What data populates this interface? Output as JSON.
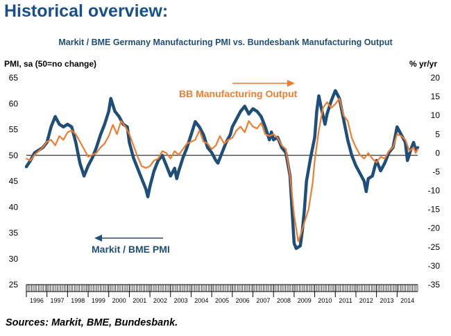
{
  "heading": "Historical overview:",
  "source": "Sources: Markit, BME, Bundesbank.",
  "chart_data": {
    "type": "line",
    "title": "Markit / BME Germany Manufacturing PMI vs. Bundesbank Manufacturing Output",
    "ylabel_left": "PMI, sa (50=no change)",
    "ylabel_right": "% yr/yr",
    "ylim_left": [
      25,
      65
    ],
    "ylim_right": [
      -35,
      20
    ],
    "yticks_left": [
      25,
      30,
      35,
      40,
      45,
      50,
      55,
      60,
      65
    ],
    "yticks_right": [
      -35,
      -30,
      -25,
      -20,
      -15,
      -10,
      -5,
      0,
      5,
      10,
      15,
      20
    ],
    "xlim": [
      1996.0,
      2015.0
    ],
    "years": [
      "1996",
      "1997",
      "1998",
      "1999",
      "2000",
      "2001",
      "2002",
      "2003",
      "2004",
      "2005",
      "2006",
      "2007",
      "2008",
      "2009",
      "2010",
      "2011",
      "2012",
      "2013",
      "2014"
    ],
    "grid": false,
    "annotations": [
      {
        "text": "BB Manufacturing Output",
        "arrow": "right",
        "color": "#f07c30"
      },
      {
        "text": "Markit / BME PMI",
        "arrow": "left",
        "color": "#1f4e79"
      }
    ],
    "series": [
      {
        "name": "Markit / BME PMI",
        "axis": "left",
        "color": "#1f4e79",
        "points": [
          [
            1996.0,
            47.8
          ],
          [
            1996.2,
            49.0
          ],
          [
            1996.4,
            50.5
          ],
          [
            1996.6,
            51.0
          ],
          [
            1996.8,
            51.5
          ],
          [
            1997.0,
            52.5
          ],
          [
            1997.2,
            55.5
          ],
          [
            1997.4,
            57.5
          ],
          [
            1997.6,
            56.0
          ],
          [
            1997.8,
            55.5
          ],
          [
            1998.0,
            56.0
          ],
          [
            1998.2,
            55.5
          ],
          [
            1998.4,
            52.5
          ],
          [
            1998.6,
            48.5
          ],
          [
            1998.8,
            46.0
          ],
          [
            1999.0,
            48.0
          ],
          [
            1999.2,
            49.5
          ],
          [
            1999.4,
            51.5
          ],
          [
            1999.6,
            54.0
          ],
          [
            1999.8,
            56.0
          ],
          [
            2000.0,
            58.5
          ],
          [
            2000.1,
            61.0
          ],
          [
            2000.3,
            58.5
          ],
          [
            2000.5,
            57.5
          ],
          [
            2000.7,
            56.0
          ],
          [
            2000.9,
            55.5
          ],
          [
            2001.0,
            52.5
          ],
          [
            2001.2,
            49.5
          ],
          [
            2001.4,
            47.5
          ],
          [
            2001.6,
            45.5
          ],
          [
            2001.8,
            43.5
          ],
          [
            2001.9,
            42.0
          ],
          [
            2002.0,
            44.0
          ],
          [
            2002.2,
            47.0
          ],
          [
            2002.4,
            49.0
          ],
          [
            2002.6,
            50.0
          ],
          [
            2002.8,
            48.0
          ],
          [
            2003.0,
            46.0
          ],
          [
            2003.2,
            47.5
          ],
          [
            2003.3,
            45.5
          ],
          [
            2003.4,
            47.0
          ],
          [
            2003.6,
            49.5
          ],
          [
            2003.8,
            51.5
          ],
          [
            2004.0,
            54.0
          ],
          [
            2004.2,
            56.5
          ],
          [
            2004.4,
            55.5
          ],
          [
            2004.6,
            54.0
          ],
          [
            2004.8,
            51.5
          ],
          [
            2005.0,
            50.5
          ],
          [
            2005.2,
            49.0
          ],
          [
            2005.3,
            48.5
          ],
          [
            2005.5,
            50.5
          ],
          [
            2005.7,
            52.5
          ],
          [
            2005.9,
            54.0
          ],
          [
            2006.0,
            55.5
          ],
          [
            2006.2,
            57.0
          ],
          [
            2006.4,
            58.5
          ],
          [
            2006.6,
            59.5
          ],
          [
            2006.8,
            58.0
          ],
          [
            2007.0,
            59.0
          ],
          [
            2007.2,
            58.5
          ],
          [
            2007.4,
            57.5
          ],
          [
            2007.6,
            55.5
          ],
          [
            2007.8,
            53.0
          ],
          [
            2007.9,
            54.5
          ],
          [
            2008.0,
            53.0
          ],
          [
            2008.2,
            53.5
          ],
          [
            2008.4,
            51.5
          ],
          [
            2008.6,
            50.5
          ],
          [
            2008.8,
            46.0
          ],
          [
            2008.9,
            39.5
          ],
          [
            2009.0,
            33.0
          ],
          [
            2009.1,
            32.0
          ],
          [
            2009.3,
            32.5
          ],
          [
            2009.4,
            35.5
          ],
          [
            2009.5,
            39.5
          ],
          [
            2009.6,
            45.0
          ],
          [
            2009.8,
            49.5
          ],
          [
            2010.0,
            53.5
          ],
          [
            2010.1,
            58.5
          ],
          [
            2010.2,
            61.5
          ],
          [
            2010.3,
            59.5
          ],
          [
            2010.5,
            56.0
          ],
          [
            2010.6,
            58.0
          ],
          [
            2010.8,
            60.5
          ],
          [
            2011.0,
            62.5
          ],
          [
            2011.2,
            61.0
          ],
          [
            2011.4,
            57.0
          ],
          [
            2011.6,
            53.0
          ],
          [
            2011.8,
            50.0
          ],
          [
            2012.0,
            48.0
          ],
          [
            2012.2,
            46.5
          ],
          [
            2012.4,
            45.0
          ],
          [
            2012.5,
            43.0
          ],
          [
            2012.6,
            45.5
          ],
          [
            2012.8,
            46.0
          ],
          [
            2013.0,
            49.0
          ],
          [
            2013.2,
            47.0
          ],
          [
            2013.4,
            48.5
          ],
          [
            2013.6,
            50.5
          ],
          [
            2013.8,
            51.5
          ],
          [
            2014.0,
            55.5
          ],
          [
            2014.2,
            54.0
          ],
          [
            2014.4,
            52.5
          ],
          [
            2014.5,
            49.0
          ],
          [
            2014.7,
            51.5
          ],
          [
            2014.8,
            52.5
          ],
          [
            2014.9,
            51.0
          ],
          [
            2015.0,
            51.5
          ]
        ]
      },
      {
        "name": "BB Manufacturing Output",
        "axis": "right",
        "color": "#f07c30",
        "points": [
          [
            1996.0,
            -1.5
          ],
          [
            1996.2,
            -2.0
          ],
          [
            1996.4,
            -0.5
          ],
          [
            1996.6,
            0.5
          ],
          [
            1996.8,
            1.5
          ],
          [
            1997.0,
            3.0
          ],
          [
            1997.2,
            3.5
          ],
          [
            1997.4,
            2.0
          ],
          [
            1997.6,
            4.5
          ],
          [
            1997.8,
            3.5
          ],
          [
            1998.0,
            5.5
          ],
          [
            1998.2,
            6.0
          ],
          [
            1998.4,
            5.0
          ],
          [
            1998.6,
            3.0
          ],
          [
            1998.8,
            1.0
          ],
          [
            1999.0,
            -1.0
          ],
          [
            1999.2,
            -0.5
          ],
          [
            1999.4,
            0.0
          ],
          [
            1999.6,
            1.5
          ],
          [
            1999.8,
            2.5
          ],
          [
            2000.0,
            4.5
          ],
          [
            2000.2,
            7.5
          ],
          [
            2000.4,
            5.0
          ],
          [
            2000.6,
            8.5
          ],
          [
            2000.8,
            7.0
          ],
          [
            2001.0,
            5.0
          ],
          [
            2001.2,
            2.0
          ],
          [
            2001.4,
            -1.0
          ],
          [
            2001.6,
            -3.5
          ],
          [
            2001.8,
            -4.0
          ],
          [
            2002.0,
            -3.5
          ],
          [
            2002.2,
            -2.0
          ],
          [
            2002.4,
            -1.5
          ],
          [
            2002.6,
            0.5
          ],
          [
            2002.8,
            0.0
          ],
          [
            2003.0,
            -1.5
          ],
          [
            2003.2,
            0.5
          ],
          [
            2003.4,
            -0.5
          ],
          [
            2003.6,
            1.0
          ],
          [
            2003.8,
            2.5
          ],
          [
            2004.0,
            3.0
          ],
          [
            2004.2,
            3.5
          ],
          [
            2004.4,
            6.0
          ],
          [
            2004.6,
            3.0
          ],
          [
            2004.8,
            2.5
          ],
          [
            2005.0,
            1.0
          ],
          [
            2005.2,
            2.0
          ],
          [
            2005.4,
            4.5
          ],
          [
            2005.6,
            2.5
          ],
          [
            2005.8,
            3.5
          ],
          [
            2006.0,
            4.0
          ],
          [
            2006.2,
            6.0
          ],
          [
            2006.4,
            7.0
          ],
          [
            2006.6,
            5.5
          ],
          [
            2006.8,
            8.5
          ],
          [
            2007.0,
            7.0
          ],
          [
            2007.2,
            6.5
          ],
          [
            2007.4,
            8.0
          ],
          [
            2007.6,
            5.0
          ],
          [
            2007.8,
            4.5
          ],
          [
            2008.0,
            5.0
          ],
          [
            2008.2,
            4.0
          ],
          [
            2008.4,
            2.0
          ],
          [
            2008.6,
            1.0
          ],
          [
            2008.8,
            -6.0
          ],
          [
            2009.0,
            -16.5
          ],
          [
            2009.2,
            -23.5
          ],
          [
            2009.3,
            -22.0
          ],
          [
            2009.5,
            -18.5
          ],
          [
            2009.7,
            -15.0
          ],
          [
            2009.9,
            -8.0
          ],
          [
            2010.0,
            -2.0
          ],
          [
            2010.2,
            6.0
          ],
          [
            2010.4,
            12.0
          ],
          [
            2010.6,
            13.5
          ],
          [
            2010.8,
            12.0
          ],
          [
            2011.0,
            13.0
          ],
          [
            2011.2,
            14.5
          ],
          [
            2011.4,
            10.0
          ],
          [
            2011.6,
            8.5
          ],
          [
            2011.8,
            4.0
          ],
          [
            2012.0,
            1.5
          ],
          [
            2012.2,
            -0.5
          ],
          [
            2012.4,
            -1.5
          ],
          [
            2012.6,
            0.0
          ],
          [
            2012.8,
            -1.5
          ],
          [
            2013.0,
            -2.5
          ],
          [
            2013.2,
            -1.0
          ],
          [
            2013.4,
            -1.5
          ],
          [
            2013.6,
            0.5
          ],
          [
            2013.8,
            1.5
          ],
          [
            2014.0,
            5.0
          ],
          [
            2014.2,
            4.5
          ],
          [
            2014.4,
            3.5
          ],
          [
            2014.6,
            0.5
          ],
          [
            2014.8,
            1.5
          ],
          [
            2014.9,
            0.0
          ],
          [
            2015.0,
            1.0
          ]
        ]
      }
    ]
  }
}
